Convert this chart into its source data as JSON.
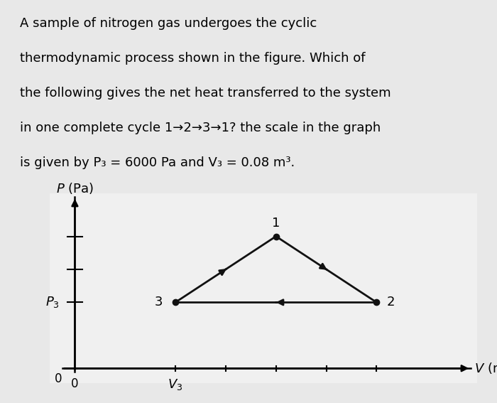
{
  "bg_color": "#e8e8e8",
  "plot_bg": "#f0f0f0",
  "text_lines": [
    "A sample of nitrogen gas undergoes the cyclic",
    "thermodynamic process shown in the figure. Which of",
    "the following gives the net heat transferred to the system",
    "in one complete cycle 1→2→3→1? the scale in the graph",
    "is given by P₃ = 6000 Pa and V₃ = 0.08 m³."
  ],
  "point1": [
    0.16,
    2.0
  ],
  "point2": [
    0.24,
    1.0
  ],
  "point3": [
    0.08,
    1.0
  ],
  "line_color": "#111111",
  "point_color": "#111111",
  "text_fontsize": 13,
  "point_label_fontsize": 13,
  "axis_label_fontsize": 13,
  "tick_label_fontsize": 12
}
